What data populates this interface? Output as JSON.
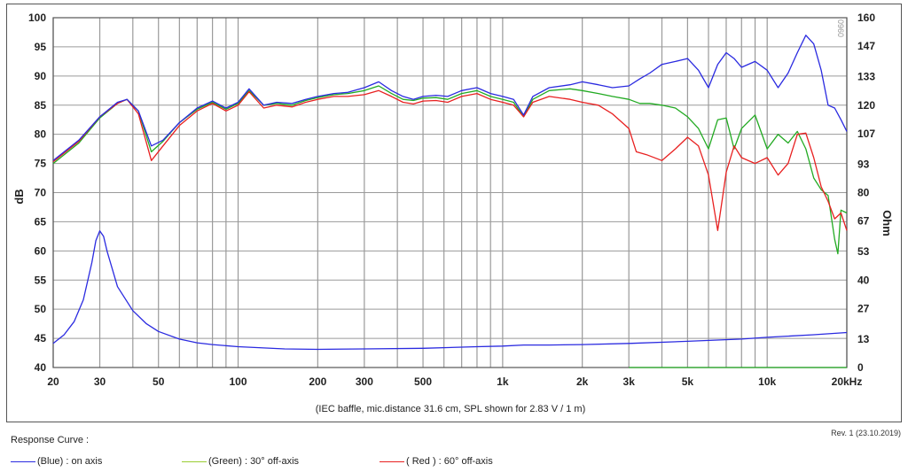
{
  "chart_data": {
    "type": "line",
    "title": "",
    "caption": "(IEC baffle, mic.distance 31.6 cm, SPL shown for 2.83 V / 1 m)",
    "xlabel": "",
    "ylabel_left": "dB",
    "ylabel_right": "Ohm",
    "x_scale": "log",
    "xlim": [
      20,
      20000
    ],
    "ylim_left": [
      40,
      100
    ],
    "ylim_right": [
      0,
      160
    ],
    "grid": true,
    "legend_placement": "bottom",
    "x_ticks": [
      {
        "value": 20,
        "label": "20"
      },
      {
        "value": 30,
        "label": "30"
      },
      {
        "value": 50,
        "label": "50"
      },
      {
        "value": 100,
        "label": "100"
      },
      {
        "value": 200,
        "label": "200"
      },
      {
        "value": 300,
        "label": "300"
      },
      {
        "value": 500,
        "label": "500"
      },
      {
        "value": 1000,
        "label": "1k"
      },
      {
        "value": 2000,
        "label": "2k"
      },
      {
        "value": 3000,
        "label": "3k"
      },
      {
        "value": 5000,
        "label": "5k"
      },
      {
        "value": 10000,
        "label": "10k"
      },
      {
        "value": 20000,
        "label": "20kHz"
      }
    ],
    "y_ticks_left": [
      {
        "value": 100,
        "label": "100"
      },
      {
        "value": 95,
        "label": "95"
      },
      {
        "value": 90,
        "label": "90"
      },
      {
        "value": 85,
        "label": "85"
      },
      {
        "value": 80,
        "label": "80"
      },
      {
        "value": 75,
        "label": "75"
      },
      {
        "value": 70,
        "label": "70"
      },
      {
        "value": 65,
        "label": "65"
      },
      {
        "value": 60,
        "label": "60"
      },
      {
        "value": 55,
        "label": "55"
      },
      {
        "value": 50,
        "label": "50"
      },
      {
        "value": 45,
        "label": "45"
      },
      {
        "value": 40,
        "label": "40"
      }
    ],
    "y_ticks_right": [
      {
        "value": 160,
        "label": "160"
      },
      {
        "value": 147,
        "label": "147"
      },
      {
        "value": 133,
        "label": "133"
      },
      {
        "value": 120,
        "label": "120"
      },
      {
        "value": 107,
        "label": "107"
      },
      {
        "value": 93,
        "label": "93"
      },
      {
        "value": 80,
        "label": "80"
      },
      {
        "value": 67,
        "label": "67"
      },
      {
        "value": 53,
        "label": "53"
      },
      {
        "value": 40,
        "label": "40"
      },
      {
        "value": 27,
        "label": "27"
      },
      {
        "value": 13,
        "label": "13"
      },
      {
        "value": 0,
        "label": "0"
      }
    ],
    "series": [
      {
        "name": "(Blue) : on axis",
        "color": "#2a2ae0",
        "axis": "left",
        "points": [
          [
            20,
            75.5
          ],
          [
            25,
            79
          ],
          [
            30,
            83
          ],
          [
            35,
            85.5
          ],
          [
            38,
            86
          ],
          [
            42,
            84
          ],
          [
            47,
            78
          ],
          [
            52,
            79
          ],
          [
            60,
            82
          ],
          [
            70,
            84.5
          ],
          [
            80,
            85.7
          ],
          [
            90,
            84.5
          ],
          [
            100,
            85.5
          ],
          [
            110,
            87.8
          ],
          [
            125,
            85
          ],
          [
            140,
            85.5
          ],
          [
            160,
            85.3
          ],
          [
            180,
            86
          ],
          [
            200,
            86.5
          ],
          [
            230,
            87
          ],
          [
            260,
            87.2
          ],
          [
            300,
            88
          ],
          [
            340,
            89
          ],
          [
            380,
            87.5
          ],
          [
            420,
            86.5
          ],
          [
            460,
            86
          ],
          [
            500,
            86.5
          ],
          [
            560,
            86.7
          ],
          [
            620,
            86.5
          ],
          [
            700,
            87.5
          ],
          [
            800,
            88
          ],
          [
            900,
            87
          ],
          [
            1000,
            86.5
          ],
          [
            1100,
            86
          ],
          [
            1200,
            83.3
          ],
          [
            1300,
            86.5
          ],
          [
            1500,
            88
          ],
          [
            1800,
            88.5
          ],
          [
            2000,
            89
          ],
          [
            2300,
            88.5
          ],
          [
            2600,
            88
          ],
          [
            3000,
            88.3
          ],
          [
            3300,
            89.5
          ],
          [
            3600,
            90.5
          ],
          [
            4000,
            92
          ],
          [
            4500,
            92.5
          ],
          [
            5000,
            93
          ],
          [
            5500,
            91
          ],
          [
            6000,
            88
          ],
          [
            6500,
            92
          ],
          [
            7000,
            94
          ],
          [
            7500,
            93
          ],
          [
            8000,
            91.5
          ],
          [
            9000,
            92.5
          ],
          [
            10000,
            91
          ],
          [
            11000,
            88
          ],
          [
            12000,
            90.5
          ],
          [
            13000,
            94
          ],
          [
            14000,
            97
          ],
          [
            15000,
            95.5
          ],
          [
            16000,
            91
          ],
          [
            17000,
            85
          ],
          [
            18000,
            84.5
          ],
          [
            19000,
            82.5
          ],
          [
            20000,
            80.5
          ]
        ]
      },
      {
        "name": "(Green) : 30° off-axis",
        "color": "#22aa22",
        "axis": "left",
        "points": [
          [
            20,
            75
          ],
          [
            25,
            78.5
          ],
          [
            30,
            82.8
          ],
          [
            35,
            85.3
          ],
          [
            38,
            86
          ],
          [
            42,
            84
          ],
          [
            47,
            77
          ],
          [
            52,
            78.8
          ],
          [
            60,
            82
          ],
          [
            70,
            84.3
          ],
          [
            80,
            85.5
          ],
          [
            90,
            84.3
          ],
          [
            100,
            85.3
          ],
          [
            110,
            87.5
          ],
          [
            125,
            85
          ],
          [
            140,
            85.3
          ],
          [
            160,
            85
          ],
          [
            180,
            85.8
          ],
          [
            200,
            86.3
          ],
          [
            230,
            86.8
          ],
          [
            260,
            87
          ],
          [
            300,
            87.5
          ],
          [
            340,
            88.3
          ],
          [
            380,
            87
          ],
          [
            420,
            86
          ],
          [
            460,
            85.8
          ],
          [
            500,
            86.2
          ],
          [
            560,
            86.3
          ],
          [
            620,
            86
          ],
          [
            700,
            87
          ],
          [
            800,
            87.5
          ],
          [
            900,
            86.5
          ],
          [
            1000,
            86
          ],
          [
            1100,
            85.5
          ],
          [
            1200,
            83
          ],
          [
            1300,
            86
          ],
          [
            1500,
            87.5
          ],
          [
            1800,
            87.8
          ],
          [
            2000,
            87.5
          ],
          [
            2300,
            87
          ],
          [
            2600,
            86.5
          ],
          [
            3000,
            86
          ],
          [
            3300,
            85.3
          ],
          [
            3600,
            85.3
          ],
          [
            4000,
            85
          ],
          [
            4500,
            84.5
          ],
          [
            5000,
            83
          ],
          [
            5500,
            81
          ],
          [
            6000,
            77.5
          ],
          [
            6500,
            82.5
          ],
          [
            7000,
            82.8
          ],
          [
            7500,
            77.5
          ],
          [
            8000,
            81
          ],
          [
            9000,
            83.3
          ],
          [
            10000,
            77.5
          ],
          [
            11000,
            80
          ],
          [
            12000,
            78.5
          ],
          [
            13000,
            80.5
          ],
          [
            14000,
            77.5
          ],
          [
            15000,
            72.5
          ],
          [
            16000,
            70.5
          ],
          [
            17000,
            69.5
          ],
          [
            18000,
            62
          ],
          [
            18500,
            59.5
          ],
          [
            19000,
            67
          ],
          [
            20000,
            66.5
          ]
        ]
      },
      {
        "name": "( Red ) : 60° off-axis",
        "color": "#e82020",
        "axis": "left",
        "points": [
          [
            20,
            75.3
          ],
          [
            25,
            78.8
          ],
          [
            30,
            83
          ],
          [
            35,
            85.3
          ],
          [
            38,
            86
          ],
          [
            42,
            83.5
          ],
          [
            47,
            75.5
          ],
          [
            52,
            78
          ],
          [
            60,
            81.5
          ],
          [
            70,
            84
          ],
          [
            80,
            85.3
          ],
          [
            90,
            84
          ],
          [
            100,
            85
          ],
          [
            110,
            87.3
          ],
          [
            125,
            84.5
          ],
          [
            140,
            85
          ],
          [
            160,
            84.7
          ],
          [
            180,
            85.5
          ],
          [
            200,
            86
          ],
          [
            230,
            86.5
          ],
          [
            260,
            86.5
          ],
          [
            300,
            86.8
          ],
          [
            340,
            87.5
          ],
          [
            380,
            86.5
          ],
          [
            420,
            85.5
          ],
          [
            460,
            85.2
          ],
          [
            500,
            85.7
          ],
          [
            560,
            85.8
          ],
          [
            620,
            85.5
          ],
          [
            700,
            86.5
          ],
          [
            800,
            87
          ],
          [
            900,
            86
          ],
          [
            1000,
            85.5
          ],
          [
            1100,
            85
          ],
          [
            1200,
            83
          ],
          [
            1300,
            85.5
          ],
          [
            1500,
            86.5
          ],
          [
            1800,
            86
          ],
          [
            2000,
            85.5
          ],
          [
            2300,
            85
          ],
          [
            2600,
            83.5
          ],
          [
            3000,
            81
          ],
          [
            3200,
            77
          ],
          [
            3500,
            76.5
          ],
          [
            4000,
            75.5
          ],
          [
            4500,
            77.5
          ],
          [
            5000,
            79.5
          ],
          [
            5500,
            78
          ],
          [
            6000,
            73
          ],
          [
            6500,
            63.5
          ],
          [
            7000,
            73.5
          ],
          [
            7500,
            78
          ],
          [
            8000,
            76
          ],
          [
            9000,
            75
          ],
          [
            10000,
            76
          ],
          [
            11000,
            73
          ],
          [
            12000,
            75
          ],
          [
            13000,
            80
          ],
          [
            14000,
            80.2
          ],
          [
            15000,
            76
          ],
          [
            16000,
            71
          ],
          [
            17000,
            68.5
          ],
          [
            18000,
            65.5
          ],
          [
            19000,
            66.5
          ],
          [
            20000,
            63.5
          ]
        ]
      },
      {
        "name": "impedance (on axis)",
        "color": "#2a2ae0",
        "axis": "right",
        "points": [
          [
            20,
            11
          ],
          [
            22,
            15
          ],
          [
            24,
            21
          ],
          [
            26,
            31
          ],
          [
            28,
            48
          ],
          [
            29,
            58
          ],
          [
            30,
            62.5
          ],
          [
            31,
            60
          ],
          [
            32,
            53
          ],
          [
            35,
            37
          ],
          [
            40,
            26
          ],
          [
            45,
            20
          ],
          [
            50,
            16.5
          ],
          [
            60,
            13
          ],
          [
            70,
            11.3
          ],
          [
            80,
            10.5
          ],
          [
            100,
            9.5
          ],
          [
            150,
            8.5
          ],
          [
            200,
            8.3
          ],
          [
            300,
            8.5
          ],
          [
            500,
            8.8
          ],
          [
            800,
            9.5
          ],
          [
            1000,
            9.8
          ],
          [
            1200,
            10.3
          ],
          [
            1500,
            10.3
          ],
          [
            2000,
            10.5
          ],
          [
            3000,
            11
          ],
          [
            5000,
            12
          ],
          [
            8000,
            13
          ],
          [
            10000,
            13.8
          ],
          [
            15000,
            15
          ],
          [
            20000,
            16
          ]
        ]
      },
      {
        "name": "impedance (off axis)",
        "color": "#22aa22",
        "axis": "right",
        "points": [
          [
            3000,
            0
          ],
          [
            20000,
            0
          ]
        ]
      }
    ]
  },
  "watermark": "0960",
  "revision": "Rev. 1 (23.10.2019)",
  "legend": {
    "title": "Response Curve :",
    "items": [
      {
        "label": "(Blue)  : on axis",
        "color": "#2a2ae0"
      },
      {
        "label": "(Green) : 30° off-axis",
        "color": "#9acd32"
      },
      {
        "label": "( Red ) : 60° off-axis",
        "color": "#e82020"
      }
    ]
  }
}
